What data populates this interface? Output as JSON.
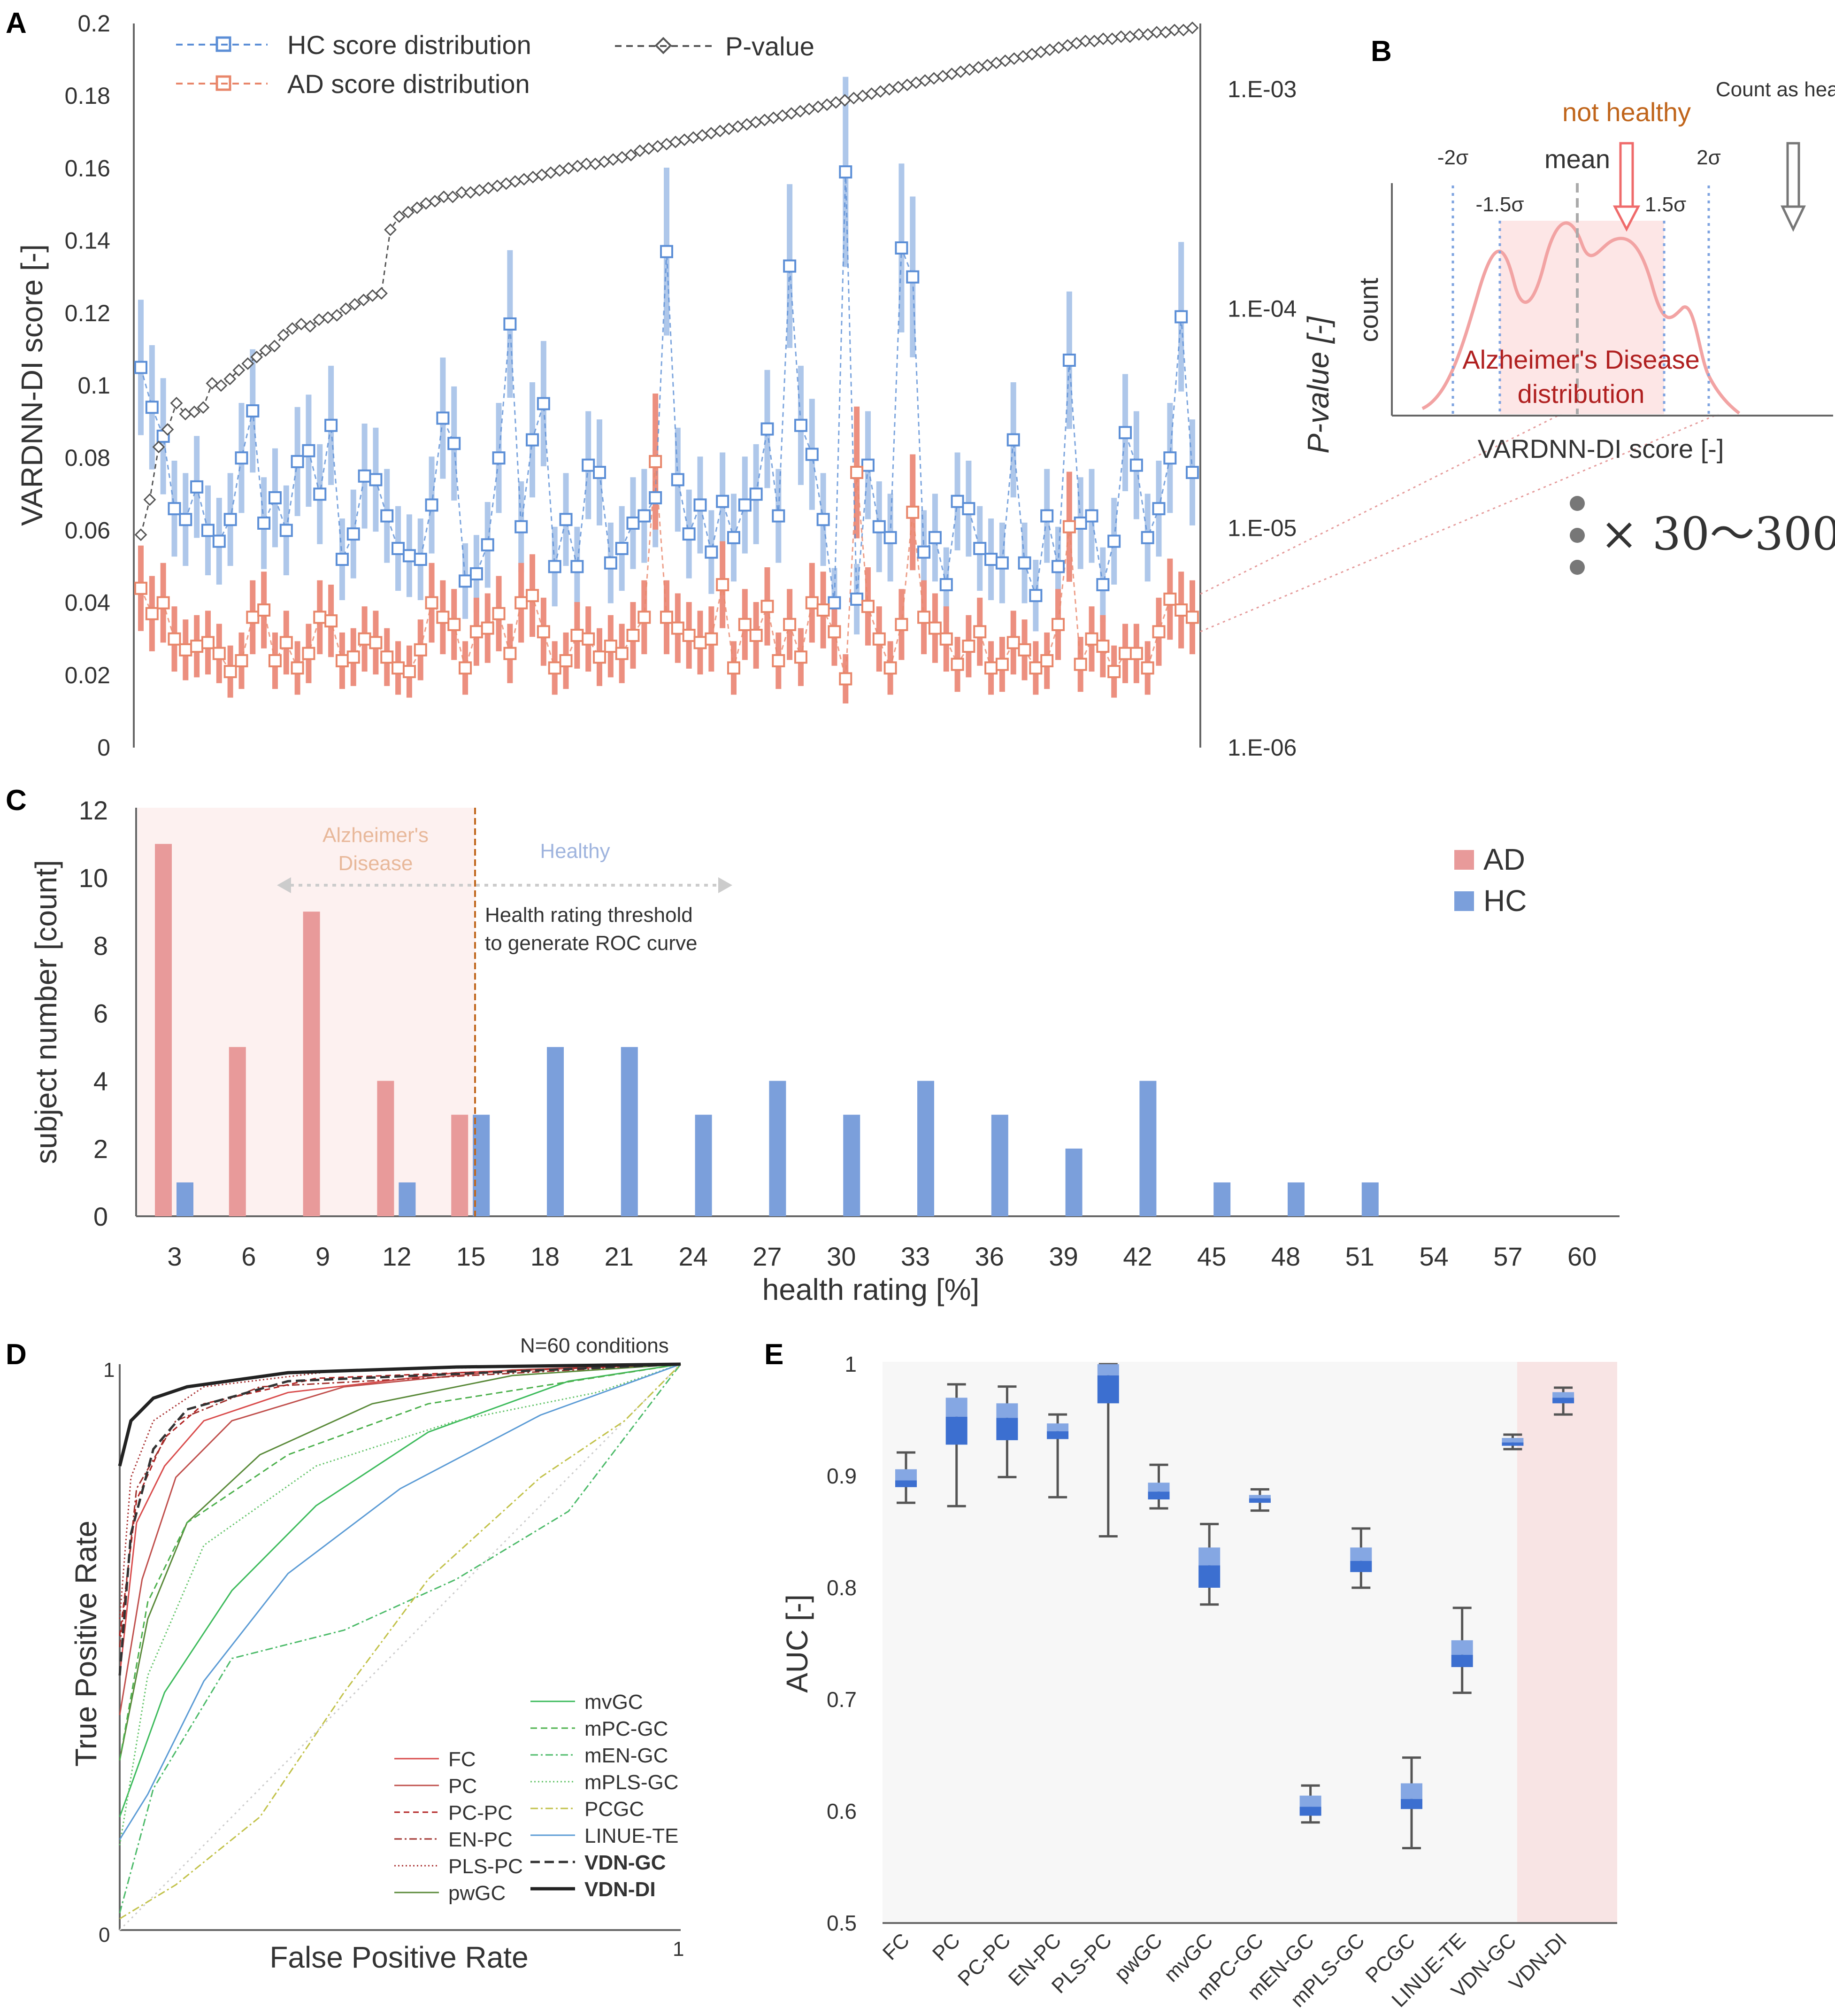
{
  "panel_labels": {
    "a": "A",
    "b": "B",
    "c": "C",
    "d": "D",
    "e": "E"
  },
  "chart_data": [
    {
      "id": "A",
      "type": "line",
      "ylabel": "VARDNN-DI score [-]",
      "y2label": "P-value [-]",
      "ylim": [
        0,
        0.2
      ],
      "yticks": [
        "0",
        "0.02",
        "0.04",
        "0.06",
        "0.08",
        "0.1",
        "0.12",
        "0.14",
        "0.16",
        "0.18",
        "0.2"
      ],
      "y2ticks": [
        "1.E-06",
        "1.E-05",
        "1.E-04",
        "1.E-03"
      ],
      "y2lim_log10": [
        -6,
        -2.7
      ],
      "legend": {
        "hc": "HC score distribution",
        "ad": "AD score distribution",
        "p": "P-value"
      },
      "series": [
        {
          "name": "HC score distribution",
          "color": "#5b8ed6",
          "values": [
            0.105,
            0.094,
            0.086,
            0.066,
            0.063,
            0.072,
            0.06,
            0.057,
            0.063,
            0.08,
            0.093,
            0.062,
            0.069,
            0.06,
            0.079,
            0.082,
            0.07,
            0.089,
            0.052,
            0.059,
            0.075,
            0.074,
            0.064,
            0.055,
            0.053,
            0.052,
            0.067,
            0.091,
            0.084,
            0.046,
            0.048,
            0.056,
            0.08,
            0.117,
            0.061,
            0.085,
            0.095,
            0.05,
            0.063,
            0.05,
            0.078,
            0.076,
            0.051,
            0.055,
            0.062,
            0.064,
            0.069,
            0.137,
            0.074,
            0.059,
            0.067,
            0.054,
            0.068,
            0.058,
            0.067,
            0.07,
            0.088,
            0.064,
            0.133,
            0.089,
            0.081,
            0.063,
            0.04,
            0.159,
            0.041,
            0.078,
            0.061,
            0.058,
            0.138,
            0.13,
            0.054,
            0.058,
            0.045,
            0.068,
            0.066,
            0.055,
            0.052,
            0.051,
            0.085,
            0.051,
            0.042,
            0.064,
            0.05,
            0.107,
            0.062,
            0.064,
            0.045,
            0.057,
            0.087,
            0.078,
            0.058,
            0.066,
            0.08,
            0.119,
            0.076
          ]
        },
        {
          "name": "AD score distribution",
          "color": "#e8866a",
          "values": [
            0.044,
            0.037,
            0.04,
            0.03,
            0.027,
            0.028,
            0.029,
            0.026,
            0.021,
            0.024,
            0.036,
            0.038,
            0.024,
            0.029,
            0.022,
            0.026,
            0.036,
            0.035,
            0.024,
            0.025,
            0.03,
            0.029,
            0.025,
            0.022,
            0.021,
            0.027,
            0.04,
            0.036,
            0.034,
            0.022,
            0.032,
            0.033,
            0.037,
            0.026,
            0.04,
            0.042,
            0.032,
            0.022,
            0.024,
            0.031,
            0.03,
            0.025,
            0.028,
            0.026,
            0.031,
            0.036,
            0.079,
            0.036,
            0.033,
            0.031,
            0.029,
            0.03,
            0.045,
            0.022,
            0.034,
            0.031,
            0.039,
            0.024,
            0.034,
            0.025,
            0.04,
            0.038,
            0.032,
            0.019,
            0.076,
            0.039,
            0.03,
            0.022,
            0.034,
            0.065,
            0.036,
            0.033,
            0.03,
            0.023,
            0.028,
            0.032,
            0.022,
            0.023,
            0.029,
            0.027,
            0.022,
            0.024,
            0.034,
            0.061,
            0.023,
            0.03,
            0.028,
            0.021,
            0.026,
            0.026,
            0.022,
            0.032,
            0.041,
            0.038,
            0.036
          ]
        },
        {
          "name": "P-value",
          "color": "#555555",
          "log10_values": [
            -5.03,
            -4.87,
            -4.63,
            -4.55,
            -4.43,
            -4.48,
            -4.47,
            -4.45,
            -4.34,
            -4.35,
            -4.32,
            -4.28,
            -4.25,
            -4.22,
            -4.19,
            -4.17,
            -4.12,
            -4.09,
            -4.07,
            -4.08,
            -4.05,
            -4.04,
            -4.03,
            -4.0,
            -3.98,
            -3.96,
            -3.94,
            -3.93,
            -3.64,
            -3.58,
            -3.56,
            -3.54,
            -3.52,
            -3.51,
            -3.49,
            -3.49,
            -3.47,
            -3.47,
            -3.46,
            -3.45,
            -3.44,
            -3.43,
            -3.42,
            -3.41,
            -3.4,
            -3.39,
            -3.38,
            -3.37,
            -3.36,
            -3.35,
            -3.34,
            -3.34,
            -3.33,
            -3.32,
            -3.31,
            -3.3,
            -3.28,
            -3.27,
            -3.26,
            -3.25,
            -3.24,
            -3.23,
            -3.22,
            -3.21,
            -3.2,
            -3.19,
            -3.18,
            -3.17,
            -3.16,
            -3.15,
            -3.14,
            -3.13,
            -3.12,
            -3.11,
            -3.1,
            -3.09,
            -3.08,
            -3.07,
            -3.06,
            -3.05,
            -3.04,
            -3.03,
            -3.02,
            -3.01,
            -3.0,
            -2.99,
            -2.98,
            -2.97,
            -2.96,
            -2.95,
            -2.94,
            -2.93,
            -2.92,
            -2.91,
            -2.9,
            -2.89,
            -2.88,
            -2.87,
            -2.86,
            -2.85,
            -2.84,
            -2.83,
            -2.82,
            -2.81,
            -2.8,
            -2.79,
            -2.78,
            -2.78,
            -2.77,
            -2.77,
            -2.76,
            -2.76,
            -2.75,
            -2.75,
            -2.74,
            -2.74,
            -2.73,
            -2.73,
            -2.72
          ]
        }
      ]
    },
    {
      "id": "C",
      "type": "bar",
      "xlabel": "health rating [%]",
      "ylabel": "subject number [count]",
      "categories": [
        "3",
        "6",
        "9",
        "12",
        "15",
        "18",
        "21",
        "24",
        "27",
        "30",
        "33",
        "36",
        "39",
        "42",
        "45",
        "48",
        "51",
        "54",
        "57",
        "60"
      ],
      "ylim": [
        0,
        12
      ],
      "yticks": [
        "0",
        "2",
        "4",
        "6",
        "8",
        "10",
        "12"
      ],
      "series": [
        {
          "name": "AD",
          "color": "#e89a9a",
          "values": [
            11,
            5,
            9,
            4,
            3,
            0,
            0,
            0,
            0,
            0,
            0,
            0,
            0,
            0,
            0,
            0,
            0,
            0,
            0,
            0
          ]
        },
        {
          "name": "HC",
          "color": "#7b9fdb",
          "values": [
            1,
            0,
            0,
            1,
            3,
            5,
            5,
            3,
            4,
            3,
            4,
            3,
            2,
            4,
            1,
            1,
            1,
            0,
            0,
            0
          ]
        }
      ],
      "annotations": {
        "ad_region": "Alzheimer's Disease",
        "hc_region": "Healthy",
        "threshold": "Health rating threshold to generate ROC curve"
      }
    },
    {
      "id": "D",
      "type": "line",
      "xlabel": "False Positive Rate",
      "ylabel": "True Positive Rate",
      "ticks": {
        "x0": "0",
        "x1": "1",
        "y1": "1"
      },
      "note": "N=60 conditions",
      "series_names": [
        "FC",
        "PC",
        "PC-PC",
        "EN-PC",
        "PLS-PC",
        "pwGC",
        "mvGC",
        "mPC-GC",
        "mEN-GC",
        "mPLS-GC",
        "PCGC",
        "LINUE-TE",
        "VDN-GC",
        "VDN-DI"
      ]
    },
    {
      "id": "E",
      "type": "box",
      "ylabel": "AUC [-]",
      "ylim": [
        0.5,
        1.0
      ],
      "yticks": [
        "0.5",
        "0.6",
        "0.7",
        "0.8",
        "0.9",
        "1"
      ],
      "categories": [
        "FC",
        "PC",
        "PC-PC",
        "EN-PC",
        "PLS-PC",
        "pwGC",
        "mvGC",
        "mPC-GC",
        "mEN-GC",
        "mPLS-GC",
        "PCGC",
        "LINUE-TE",
        "VDN-GC",
        "VDN-DI"
      ],
      "boxes": [
        {
          "min": 0.876,
          "q1": 0.89,
          "median": 0.896,
          "q3": 0.906,
          "max": 0.921
        },
        {
          "min": 0.873,
          "q1": 0.928,
          "median": 0.953,
          "q3": 0.97,
          "max": 0.982
        },
        {
          "min": 0.899,
          "q1": 0.932,
          "median": 0.952,
          "q3": 0.965,
          "max": 0.98
        },
        {
          "min": 0.881,
          "q1": 0.933,
          "median": 0.94,
          "q3": 0.947,
          "max": 0.955
        },
        {
          "min": 0.846,
          "q1": 0.965,
          "median": 0.99,
          "q3": 1.0,
          "max": 1.0
        },
        {
          "min": 0.871,
          "q1": 0.879,
          "median": 0.886,
          "q3": 0.894,
          "max": 0.91
        },
        {
          "min": 0.785,
          "q1": 0.8,
          "median": 0.82,
          "q3": 0.836,
          "max": 0.857
        },
        {
          "min": 0.869,
          "q1": 0.876,
          "median": 0.88,
          "q3": 0.883,
          "max": 0.888
        },
        {
          "min": 0.59,
          "q1": 0.596,
          "median": 0.604,
          "q3": 0.614,
          "max": 0.623
        },
        {
          "min": 0.8,
          "q1": 0.814,
          "median": 0.824,
          "q3": 0.836,
          "max": 0.853
        },
        {
          "min": 0.567,
          "q1": 0.602,
          "median": 0.611,
          "q3": 0.625,
          "max": 0.648
        },
        {
          "min": 0.706,
          "q1": 0.729,
          "median": 0.74,
          "q3": 0.753,
          "max": 0.782
        },
        {
          "min": 0.924,
          "q1": 0.927,
          "median": 0.93,
          "q3": 0.934,
          "max": 0.937
        },
        {
          "min": 0.955,
          "q1": 0.965,
          "median": 0.97,
          "q3": 0.975,
          "max": 0.979
        }
      ]
    }
  ],
  "panel_b": {
    "not_healthy": "not healthy",
    "count_as_healthy": "Count as healthy",
    "mean": "mean",
    "m2s": "-2σ",
    "m15s": "-1.5σ",
    "p15s": "1.5σ",
    "p2s": "2σ",
    "ylabel": "count",
    "dist_line1": "Alzheimer's Disease",
    "dist_line2": "distribution",
    "xlabel": "VARDNN-DI score [-]",
    "multiplier": "× 30〜300"
  },
  "colors": {
    "hc": "#5b8ed6",
    "ad": "#e8866a",
    "ad_bar": "#e89a9a",
    "hc_bar": "#7b9fdb",
    "box": "#3c6fd0",
    "box_light": "#85a7e3",
    "highlight": "#f8e4e4",
    "plot_bg": "#f7f7f7",
    "p_value": "#555555"
  }
}
